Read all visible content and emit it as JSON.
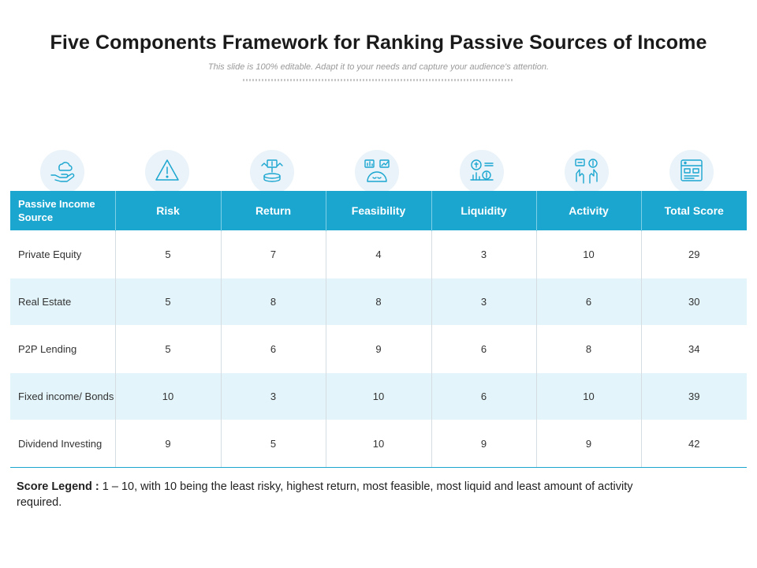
{
  "title": "Five Components Framework for Ranking Passive Sources of Income",
  "subtitle": "This slide is 100% editable. Adapt it to your needs and capture your audience's attention.",
  "icons": [
    "cloud-hand-icon",
    "warning-triangle-icon",
    "money-return-icon",
    "feasibility-charts-icon",
    "liquidity-coins-icon",
    "activity-hands-icon",
    "total-score-board-icon"
  ],
  "colors": {
    "header": "#1ba6d0",
    "alt_row": "#e3f4fa",
    "icon_stroke": "#1ba6d0",
    "icon_bg": "#e9f3f9"
  },
  "table": {
    "headers": [
      "Passive Income Source",
      "Risk",
      "Return",
      "Feasibility",
      "Liquidity",
      "Activity",
      "Total Score"
    ],
    "rows": [
      [
        "Private Equity",
        "5",
        "7",
        "4",
        "3",
        "10",
        "29"
      ],
      [
        "Real Estate",
        "5",
        "8",
        "8",
        "3",
        "6",
        "30"
      ],
      [
        "P2P Lending",
        "5",
        "6",
        "9",
        "6",
        "8",
        "34"
      ],
      [
        "Fixed income/ Bonds",
        "10",
        "3",
        "10",
        "6",
        "10",
        "39"
      ],
      [
        "Dividend Investing",
        "9",
        "5",
        "10",
        "9",
        "9",
        "42"
      ]
    ]
  },
  "legend": {
    "label": "Score Legend :",
    "text": " 1 – 10, with 10 being the least risky, highest return, most feasible, most liquid and least amount of activity required."
  }
}
